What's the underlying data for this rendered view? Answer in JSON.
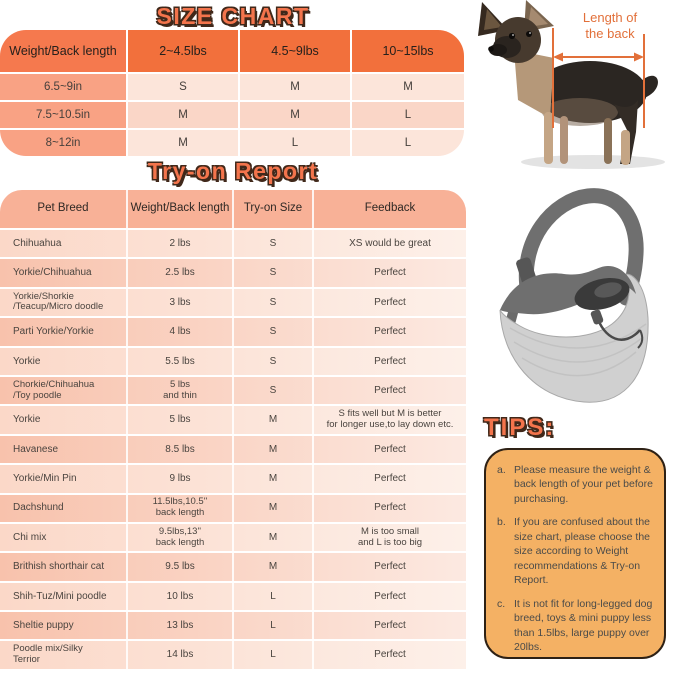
{
  "size_chart": {
    "title": "SIZE CHART",
    "columns": [
      "Weight/Back length",
      "2~4.5lbs",
      "4.5~9lbs",
      "10~15lbs"
    ],
    "rows": [
      {
        "label": "6.5~9in",
        "values": [
          "S",
          "M",
          "M"
        ]
      },
      {
        "label": "7.5~10.5in",
        "values": [
          "M",
          "M",
          "L"
        ]
      },
      {
        "label": "8~12in",
        "values": [
          "M",
          "L",
          "L"
        ]
      }
    ]
  },
  "tryon_report": {
    "title": "Try-on Report",
    "columns": [
      "Pet Breed",
      "Weight/Back length",
      "Try-on Size",
      "Feedback"
    ],
    "rows": [
      [
        "Chihuahua",
        "2 lbs",
        "S",
        "XS would be great"
      ],
      [
        "Yorkie/Chihuahua",
        "2.5 lbs",
        "S",
        "Perfect"
      ],
      [
        "Yorkie/Shorkie\n/Teacup/Micro doodle",
        "3 lbs",
        "S",
        "Perfect"
      ],
      [
        "Parti Yorkie/Yorkie",
        "4 lbs",
        "S",
        "Perfect"
      ],
      [
        "Yorkie",
        "5.5 lbs",
        "S",
        "Perfect"
      ],
      [
        "Chorkie/Chihuahua\n/Toy poodle",
        "5 lbs\nand thin",
        "S",
        "Perfect"
      ],
      [
        "Yorkie",
        "5 lbs",
        "M",
        "S fits well but M is better\nfor longer use,to lay down etc."
      ],
      [
        "Havanese",
        "8.5 lbs",
        "M",
        "Perfect"
      ],
      [
        "Yorkie/Min Pin",
        "9 lbs",
        "M",
        "Perfect"
      ],
      [
        "Dachshund",
        "11.5lbs,10.5''\nback length",
        "M",
        "Perfect"
      ],
      [
        "Chi mix",
        "9.5lbs,13''\nback length",
        "M",
        "M is too small\nand L is too big"
      ],
      [
        "Brithish shorthair cat",
        "9.5 lbs",
        "M",
        "Perfect"
      ],
      [
        "Shih-Tuz/Mini poodle",
        "10 lbs",
        "L",
        "Perfect"
      ],
      [
        "Sheltie puppy",
        "13 lbs",
        "L",
        "Perfect"
      ],
      [
        "Poodle mix/Silky\n Terrior",
        "14 lbs",
        "L",
        "Perfect"
      ]
    ]
  },
  "annotation": {
    "label": "Length of\nthe back"
  },
  "tips": {
    "title": "TIPS:",
    "items": [
      {
        "key": "a.",
        "text": "Please measure the weight & back length of your pet before purchasing."
      },
      {
        "key": "b.",
        "text": "If you are confused about the size chart, please choose the size according to Weight recommendations & Try-on Report."
      },
      {
        "key": "c.",
        "text": "It is not fit for long-legged dog breed, toys & mini puppy less than 1.5lbs, large puppy over 20lbs."
      }
    ]
  },
  "colors": {
    "accent_orange": "#F2703C",
    "salmon": "#F9A284",
    "tips_box": "#F4B164",
    "annotation_orange": "#E2703A"
  }
}
